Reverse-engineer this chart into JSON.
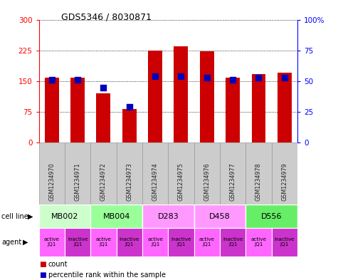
{
  "title": "GDS5346 / 8030871",
  "samples": [
    "GSM1234970",
    "GSM1234971",
    "GSM1234972",
    "GSM1234973",
    "GSM1234974",
    "GSM1234975",
    "GSM1234976",
    "GSM1234977",
    "GSM1234978",
    "GSM1234979"
  ],
  "counts": [
    158,
    158,
    120,
    82,
    225,
    235,
    222,
    158,
    168,
    170
  ],
  "percentile_ranks": [
    51,
    51,
    45,
    29,
    54,
    54,
    53,
    51,
    53,
    53
  ],
  "cell_lines": [
    {
      "label": "MB002",
      "start": 0,
      "end": 2,
      "color": "#ccffcc"
    },
    {
      "label": "MB004",
      "start": 2,
      "end": 4,
      "color": "#99ff99"
    },
    {
      "label": "D283",
      "start": 4,
      "end": 6,
      "color": "#ff99ff"
    },
    {
      "label": "D458",
      "start": 6,
      "end": 8,
      "color": "#ff99ff"
    },
    {
      "label": "D556",
      "start": 8,
      "end": 10,
      "color": "#66ee66"
    }
  ],
  "agent_labels": [
    "active\nJQ1",
    "inactive\nJQ1",
    "active\nJQ1",
    "inactive\nJQ1",
    "active\nJQ1",
    "inactive\nJQ1",
    "active\nJQ1",
    "inactive\nJQ1",
    "active\nJQ1",
    "inactive\nJQ1"
  ],
  "agent_colors_active": "#ff66ff",
  "agent_colors_inactive": "#cc33cc",
  "agent_is_active": [
    true,
    false,
    true,
    false,
    true,
    false,
    true,
    false,
    true,
    false
  ],
  "bar_color": "#cc0000",
  "dot_color": "#0000bb",
  "ylim_left": [
    0,
    300
  ],
  "ylim_right": [
    0,
    100
  ],
  "yticks_left": [
    0,
    75,
    150,
    225,
    300
  ],
  "yticks_right": [
    0,
    25,
    50,
    75,
    100
  ],
  "ytick_labels_left": [
    "0",
    "75",
    "150",
    "225",
    "300"
  ],
  "ytick_labels_right": [
    "0",
    "25",
    "50",
    "75",
    "100%"
  ],
  "bar_width": 0.55,
  "dot_size": 28,
  "gsm_box_color": "#cccccc",
  "gsm_text_color": "#222222"
}
